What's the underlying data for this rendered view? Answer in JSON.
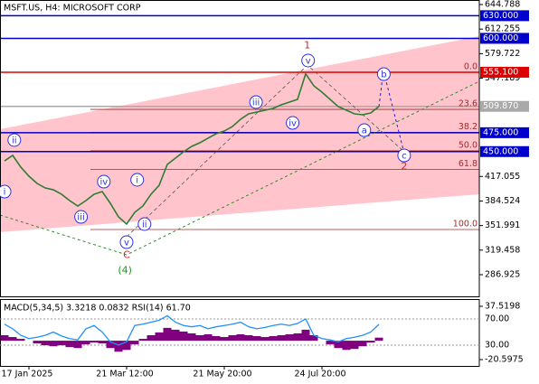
{
  "chart_data": {
    "type": "line",
    "title": "MSFT.US, H4:  MICROSOFT CORP",
    "categories": [
      null,
      null,
      null,
      "17 Jan 2025",
      null,
      null,
      null,
      null,
      null,
      null,
      null,
      null,
      null,
      null,
      null,
      "21 Mar 12:00",
      null,
      null,
      null,
      null,
      null,
      null,
      null,
      null,
      null,
      null,
      null,
      "21 May 20:00",
      null,
      null,
      null,
      null,
      null,
      null,
      null,
      null,
      null,
      null,
      null,
      "24 Jul 20:00",
      null,
      null,
      null,
      null,
      null,
      null,
      null
    ],
    "series": [
      {
        "name": "MSFT.US",
        "color": "#2e7d32",
        "values": [
          437.7,
          444.9,
          429.4,
          417.4,
          407.8,
          401.8,
          399.4,
          393.5,
          385.1,
          377.9,
          385.1,
          393.5,
          397.0,
          381.5,
          363.5,
          354.0,
          369.5,
          377.9,
          393.5,
          405.4,
          433.0,
          441.3,
          449.7,
          456.9,
          461.7,
          467.7,
          473.6,
          477.2,
          483.2,
          492.8,
          500.0,
          502.4,
          504.8,
          507.2,
          511.9,
          515.5,
          519.1,
          553.0,
          537.1,
          528.7,
          519.1,
          509.6,
          504.8,
          500.0,
          498.8,
          501.2,
          509.87
        ]
      }
    ],
    "ylim": [
      258.2,
      650.8
    ],
    "yticks": [
      644.788,
      612.255,
      579.722,
      547.189,
      417.055,
      384.524,
      351.991,
      319.458,
      286.925
    ],
    "levels": [
      {
        "value": 630,
        "label": "630.000",
        "color": "#0000cd"
      },
      {
        "value": 600,
        "label": "600.000",
        "color": "#0000cd"
      },
      {
        "value": 555.1,
        "label": "555.100",
        "color": "#dd0000"
      },
      {
        "value": 475,
        "label": "475.000",
        "color": "#0000cd"
      },
      {
        "value": 450,
        "label": "450.000",
        "color": "#0000cd"
      },
      {
        "value": 509.87,
        "label": "509.870",
        "color": "#a9a9a9"
      }
    ],
    "fibonacci": {
      "labels": [
        "0.0",
        "23.6",
        "38.2",
        "50.0",
        "61.8",
        "100.0"
      ],
      "prices": [
        555.1,
        505.9,
        475.5,
        451.0,
        426.4,
        346.8
      ],
      "color": "#a52a2a"
    },
    "annotations": [
      {
        "text": "ii",
        "x": 1.2,
        "y": 465.3,
        "circled": true,
        "color": "#3030e0"
      },
      {
        "text": "i",
        "x": 0,
        "y": 397.0,
        "circled": true,
        "color": "#3030e0"
      },
      {
        "text": "iii",
        "x": 9.4,
        "y": 363.5,
        "circled": true,
        "color": "#3030e0"
      },
      {
        "text": "iv",
        "x": 12.2,
        "y": 410.2,
        "circled": true,
        "color": "#3030e0"
      },
      {
        "text": "v",
        "x": 15,
        "y": 330.0,
        "circled": true,
        "color": "#3030e0"
      },
      {
        "text": "C",
        "x": 15,
        "y": 313.3,
        "circled": false,
        "color": "#c03030"
      },
      {
        "text": "(4)",
        "x": 14.8,
        "y": 292.9,
        "circled": false,
        "color": "#1a9a1a"
      },
      {
        "text": "i",
        "x": 16.3,
        "y": 412.6,
        "circled": true,
        "color": "#3030e0"
      },
      {
        "text": "ii",
        "x": 17.2,
        "y": 353.9,
        "circled": true,
        "color": "#3030e0"
      },
      {
        "text": "iii",
        "x": 30.9,
        "y": 515.5,
        "circled": true,
        "color": "#3030e0"
      },
      {
        "text": "iv",
        "x": 35.4,
        "y": 488.0,
        "circled": true,
        "color": "#3030e0"
      },
      {
        "text": "v",
        "x": 37.3,
        "y": 570.6,
        "circled": true,
        "color": "#3030e0"
      },
      {
        "text": "1",
        "x": 37.2,
        "y": 591.0,
        "circled": false,
        "color": "#c03030"
      },
      {
        "text": "a",
        "x": 44.2,
        "y": 478.4,
        "circled": true,
        "color": "#3030e0"
      },
      {
        "text": "b",
        "x": 46.6,
        "y": 552.6,
        "circled": true,
        "color": "#3030e0"
      },
      {
        "text": "c",
        "x": 49.1,
        "y": 444.9,
        "circled": true,
        "color": "#3030e0"
      },
      {
        "text": "2",
        "x": 49.1,
        "y": 430.6,
        "circled": false,
        "color": "#c03030"
      }
    ],
    "indicator": {
      "label": "MACD(5,34,5) 3.3218 0.0832 RSI(14) 61.70",
      "ylim": [
        -20.5975,
        37.5198
      ],
      "yticks": [
        37.5198,
        -20.5975
      ],
      "macd_color": "#800080",
      "macd": [
        6,
        4,
        2,
        0,
        -3,
        -5,
        -6,
        -5,
        -7,
        -8,
        -4,
        -2,
        -3,
        -8,
        -12,
        -10,
        -4,
        2,
        6,
        9,
        14,
        12,
        10,
        8,
        6,
        7,
        5,
        4,
        6,
        7,
        6,
        5,
        4,
        5,
        6,
        7,
        8,
        12,
        6,
        0,
        -4,
        -8,
        -10,
        -9,
        -6,
        -2,
        3.3218
      ],
      "rsi_ylim": [
        7.9,
        89.3
      ],
      "rsi_yticks": [
        {
          "value": 70,
          "label": "70.00"
        },
        {
          "value": 30,
          "label": "30.00"
        }
      ],
      "rsi_color": "#1e90ff",
      "rsi": [
        62,
        55,
        45,
        40,
        42,
        45,
        50,
        44,
        40,
        38,
        55,
        60,
        50,
        35,
        30,
        35,
        60,
        62,
        65,
        68,
        75,
        65,
        60,
        58,
        60,
        55,
        58,
        60,
        62,
        65,
        58,
        55,
        57,
        60,
        62,
        60,
        63,
        70,
        45,
        40,
        38,
        35,
        40,
        42,
        45,
        50,
        61.7
      ]
    }
  }
}
